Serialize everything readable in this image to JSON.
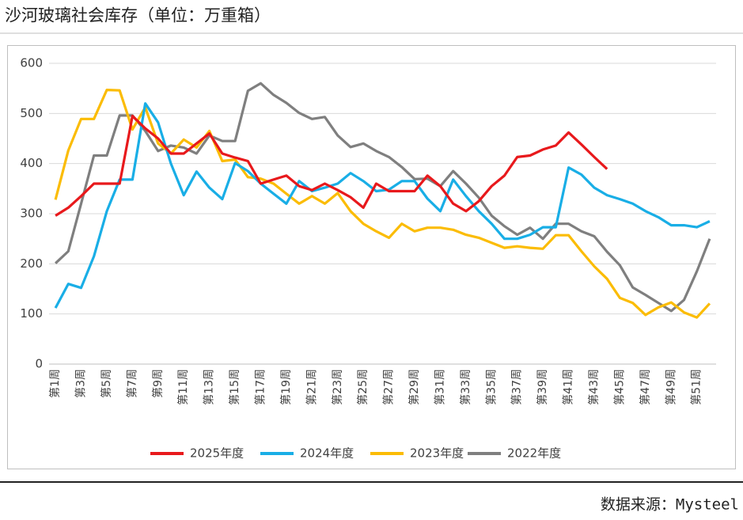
{
  "chart_data": {
    "type": "line",
    "title": "沙河玻璃社会库存（单位：万重箱）",
    "source": "数据来源：Mysteel",
    "categories": [
      "第1周",
      null,
      "第3周",
      null,
      "第5周",
      null,
      "第7周",
      null,
      "第9周",
      null,
      "第11周",
      null,
      "第13周",
      null,
      "第15周",
      null,
      "第17周",
      null,
      "第19周",
      null,
      "第21周",
      null,
      "第23周",
      null,
      "第25周",
      null,
      "第27周",
      null,
      "第29周",
      null,
      "第31周",
      null,
      "第33周",
      null,
      "第35周",
      null,
      "第37周",
      null,
      "第39周",
      null,
      "第41周",
      null,
      "第43周",
      null,
      "第45周",
      null,
      "第47周",
      null,
      "第49周",
      null,
      "第51周",
      null
    ],
    "ylim": [
      0,
      600
    ],
    "yticks": [
      0,
      100,
      200,
      300,
      400,
      500,
      600
    ],
    "grid": true,
    "legend": "bottom",
    "series": [
      {
        "name": "2025年度",
        "color": "#e8191c",
        "values": [
          296,
          312,
          335,
          360,
          360,
          360,
          495,
          470,
          450,
          420,
          420,
          440,
          460,
          420,
          412,
          405,
          360,
          368,
          376,
          355,
          347,
          360,
          347,
          333,
          312,
          360,
          345,
          345,
          345,
          376,
          355,
          320,
          305,
          325,
          355,
          376,
          413,
          416,
          428,
          436,
          462,
          438,
          413,
          389,
          null,
          null,
          null,
          null,
          null,
          null,
          null,
          null
        ]
      },
      {
        "name": "2024年度",
        "color": "#19aee6",
        "values": [
          112,
          160,
          152,
          215,
          305,
          368,
          368,
          520,
          482,
          400,
          337,
          384,
          352,
          329,
          401,
          385,
          360,
          340,
          320,
          365,
          345,
          352,
          360,
          381,
          365,
          345,
          348,
          365,
          365,
          330,
          305,
          368,
          335,
          305,
          280,
          250,
          250,
          258,
          273,
          273,
          392,
          378,
          352,
          337,
          329,
          320,
          305,
          293,
          277,
          277,
          273,
          285
        ]
      },
      {
        "name": "2023年度",
        "color": "#fbbc05",
        "values": [
          328,
          426,
          489,
          489,
          547,
          546,
          468,
          512,
          440,
          420,
          448,
          432,
          465,
          405,
          408,
          373,
          370,
          360,
          340,
          320,
          335,
          320,
          341,
          305,
          280,
          265,
          252,
          280,
          265,
          272,
          272,
          268,
          258,
          252,
          242,
          232,
          235,
          232,
          230,
          257,
          257,
          225,
          195,
          170,
          132,
          122,
          98,
          113,
          123,
          103,
          93,
          121
        ]
      },
      {
        "name": "2022年度",
        "color": "#7f7f7f",
        "values": [
          201,
          225,
          320,
          416,
          416,
          496,
          496,
          465,
          425,
          436,
          432,
          420,
          456,
          445,
          445,
          545,
          560,
          537,
          521,
          501,
          489,
          493,
          456,
          433,
          440,
          425,
          413,
          393,
          369,
          370,
          355,
          385,
          360,
          332,
          296,
          275,
          258,
          272,
          250,
          280,
          280,
          265,
          255,
          224,
          197,
          153,
          138,
          122,
          106,
          128,
          185,
          250
        ]
      }
    ]
  }
}
